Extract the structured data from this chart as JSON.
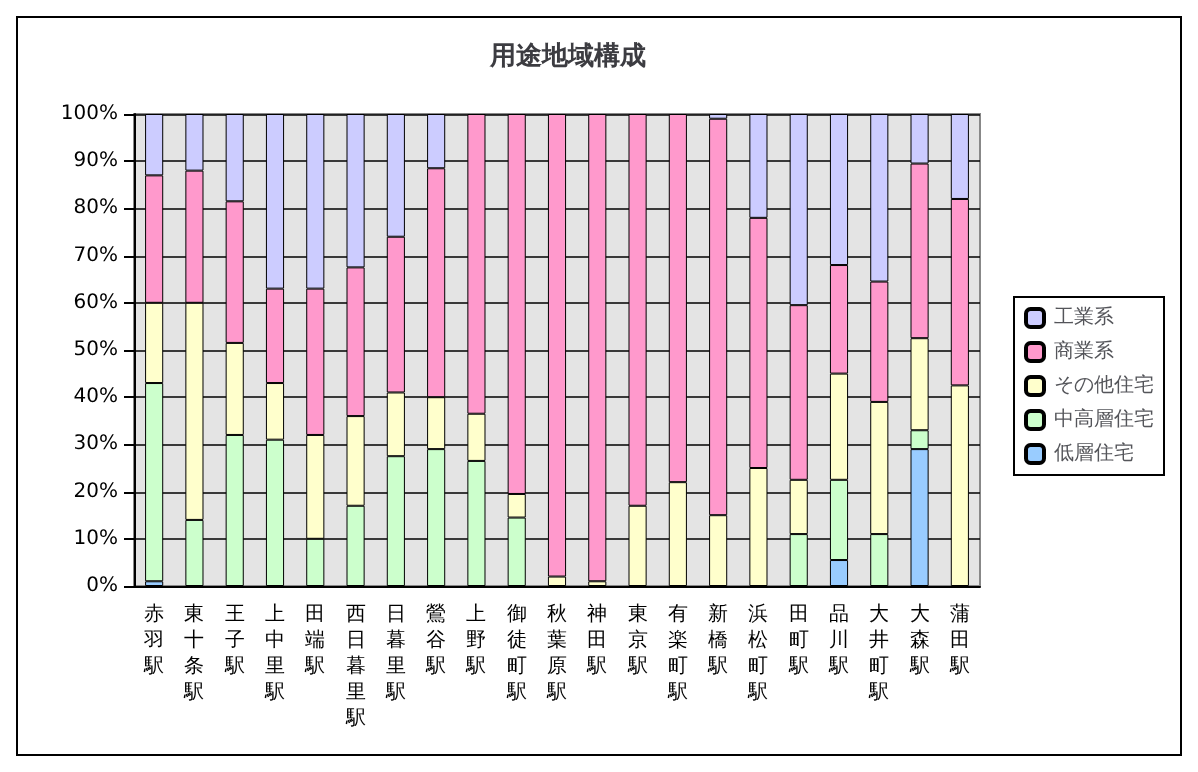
{
  "chart_data": {
    "type": "bar",
    "title": "用途地域構成",
    "stacked": true,
    "categories": [
      "赤羽駅",
      "東十条駅",
      "王子駅",
      "上中里駅",
      "田端駅",
      "西日暮里駅",
      "日暮里駅",
      "鶯谷駅",
      "上野駅",
      "御徒町駅",
      "秋葉原駅",
      "神田駅",
      "東京駅",
      "有楽町駅",
      "新橋駅",
      "浜松町駅",
      "田町駅",
      "品川駅",
      "大井町駅",
      "大森駅",
      "蒲田駅"
    ],
    "series": [
      {
        "name": "低層住宅",
        "color": "#99ccff",
        "values": [
          1,
          0,
          0,
          0,
          0,
          0,
          0,
          0,
          0,
          0,
          0,
          0,
          0,
          0,
          0,
          0,
          0,
          5.5,
          0,
          29,
          0
        ]
      },
      {
        "name": "中高層住宅",
        "color": "#ccffcc",
        "values": [
          42,
          14,
          32,
          31,
          10,
          17,
          27.5,
          29,
          26.5,
          14.5,
          0,
          0,
          0,
          0,
          0,
          0,
          11,
          17,
          11,
          4,
          0
        ]
      },
      {
        "name": "その他住宅",
        "color": "#ffffcc",
        "values": [
          17,
          46,
          19.5,
          12,
          22,
          19,
          13.5,
          11,
          10,
          5,
          2,
          1,
          17,
          22,
          15,
          25,
          11.5,
          22.5,
          28,
          19.5,
          42.5
        ]
      },
      {
        "name": "商業系",
        "color": "#ff99cc",
        "values": [
          27,
          28,
          30,
          20,
          31,
          31.5,
          33,
          48.5,
          63.5,
          80.5,
          98,
          99,
          83,
          78,
          84,
          53,
          37,
          23,
          25.5,
          37,
          39.5
        ]
      },
      {
        "name": "工業系",
        "color": "#ccccff",
        "values": [
          13,
          12,
          18.5,
          37,
          37,
          32.5,
          26,
          11.5,
          0,
          0,
          0,
          0,
          0,
          0,
          1,
          22,
          40.5,
          32,
          35.5,
          10.5,
          18
        ]
      }
    ],
    "ylim": [
      0,
      100
    ],
    "yticks": [
      {
        "value": 0,
        "label": "0%"
      },
      {
        "value": 10,
        "label": "10%"
      },
      {
        "value": 20,
        "label": "20%"
      },
      {
        "value": 30,
        "label": "30%"
      },
      {
        "value": 40,
        "label": "40%"
      },
      {
        "value": 50,
        "label": "50%"
      },
      {
        "value": 60,
        "label": "60%"
      },
      {
        "value": 70,
        "label": "70%"
      },
      {
        "value": 80,
        "label": "80%"
      },
      {
        "value": 90,
        "label": "90%"
      },
      {
        "value": 100,
        "label": "100%"
      }
    ],
    "grid": "y",
    "legend": "right"
  }
}
